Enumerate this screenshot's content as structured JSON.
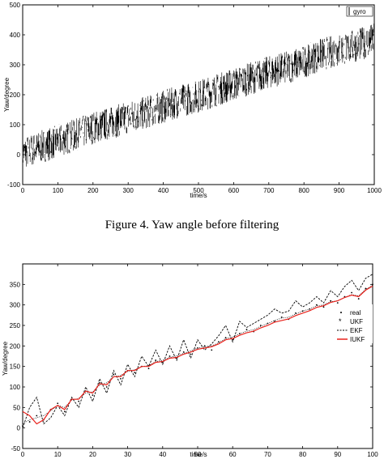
{
  "caption": "Figure 4. Yaw angle before filtering",
  "chart_data": [
    {
      "type": "line",
      "title": "",
      "xlabel": "time/s",
      "ylabel": "Yaw/degree",
      "xlim": [
        0,
        1000
      ],
      "ylim": [
        -100,
        500
      ],
      "xticks": [
        0,
        100,
        200,
        300,
        400,
        500,
        600,
        700,
        800,
        900,
        1000
      ],
      "yticks": [
        -100,
        0,
        100,
        200,
        300,
        400,
        500
      ],
      "ytick_labels": [
        "-100",
        "0",
        "100",
        "200",
        "300",
        "400",
        "500"
      ],
      "grid": false,
      "legend_position": "top-right",
      "series": [
        {
          "name": "gyro",
          "color": "#000000",
          "description": "noisy measured yaw trending from about 0 to about 380",
          "x": [
            0,
            50,
            100,
            150,
            200,
            250,
            300,
            350,
            400,
            450,
            500,
            550,
            600,
            650,
            700,
            750,
            800,
            850,
            900,
            950,
            1000
          ],
          "y": [
            5,
            25,
            45,
            65,
            90,
            105,
            125,
            140,
            160,
            180,
            195,
            215,
            235,
            255,
            275,
            290,
            310,
            335,
            350,
            365,
            385
          ],
          "noise_amplitude": 55
        }
      ]
    },
    {
      "type": "line",
      "title": "",
      "xlabel": "time/s",
      "ylabel": "Yaw/degree",
      "xlim": [
        0,
        100
      ],
      "ylim": [
        -50,
        400
      ],
      "xticks": [
        0,
        10,
        20,
        30,
        40,
        50,
        60,
        70,
        80,
        90,
        100
      ],
      "yticks": [
        -50,
        0,
        50,
        100,
        150,
        200,
        250,
        300,
        350
      ],
      "ytick_labels": [
        "-50",
        "0",
        "50",
        "100",
        "150",
        "200",
        "250",
        "300",
        "350"
      ],
      "grid": false,
      "legend_position": "right",
      "series": [
        {
          "name": "real",
          "style": "dots",
          "color": "#000000",
          "x": [
            0,
            2,
            4,
            6,
            8,
            10,
            12,
            14,
            16,
            18,
            20,
            22,
            24,
            26,
            28,
            30,
            32,
            34,
            36,
            38,
            40,
            42,
            44,
            46,
            48,
            50,
            52,
            54,
            56,
            58,
            60,
            62,
            64,
            66,
            68,
            70,
            72,
            74,
            76,
            78,
            80,
            82,
            84,
            86,
            88,
            90,
            92,
            94,
            96,
            98,
            100
          ],
          "y": [
            5,
            15,
            30,
            20,
            45,
            60,
            40,
            70,
            65,
            90,
            80,
            110,
            100,
            130,
            120,
            140,
            135,
            150,
            145,
            165,
            160,
            175,
            170,
            185,
            180,
            195,
            200,
            190,
            210,
            220,
            215,
            230,
            240,
            235,
            250,
            255,
            260,
            270,
            265,
            280,
            285,
            290,
            300,
            295,
            310,
            305,
            320,
            330,
            315,
            340,
            350
          ]
        },
        {
          "name": "UKF",
          "style": "dotted",
          "color": "#000000",
          "x": [
            0,
            2,
            4,
            6,
            8,
            10,
            12,
            14,
            16,
            18,
            20,
            22,
            24,
            26,
            28,
            30,
            32,
            34,
            36,
            38,
            40,
            42,
            44,
            46,
            48,
            50,
            52,
            54,
            56,
            58,
            60,
            62,
            64,
            66,
            68,
            70,
            72,
            74,
            76,
            78,
            80,
            82,
            84,
            86,
            88,
            90,
            92,
            94,
            96,
            98,
            100
          ],
          "y": [
            10,
            20,
            25,
            30,
            42,
            55,
            50,
            68,
            72,
            85,
            88,
            105,
            110,
            125,
            128,
            138,
            142,
            150,
            152,
            162,
            165,
            172,
            176,
            182,
            188,
            195,
            198,
            200,
            208,
            218,
            222,
            230,
            236,
            240,
            248,
            255,
            262,
            268,
            270,
            278,
            285,
            290,
            298,
            300,
            308,
            310,
            318,
            325,
            322,
            338,
            348
          ]
        },
        {
          "name": "EKF",
          "style": "dashed",
          "color": "#000000",
          "x": [
            0,
            2,
            4,
            6,
            8,
            10,
            12,
            14,
            16,
            18,
            20,
            22,
            24,
            26,
            28,
            30,
            32,
            34,
            36,
            38,
            40,
            42,
            44,
            46,
            48,
            50,
            52,
            54,
            56,
            58,
            60,
            62,
            64,
            66,
            68,
            70,
            72,
            74,
            76,
            78,
            80,
            82,
            84,
            86,
            88,
            90,
            92,
            94,
            96,
            98,
            100
          ],
          "y": [
            0,
            50,
            75,
            10,
            25,
            55,
            30,
            75,
            50,
            100,
            65,
            120,
            85,
            140,
            105,
            155,
            125,
            175,
            150,
            190,
            155,
            200,
            165,
            215,
            170,
            215,
            190,
            205,
            225,
            250,
            210,
            260,
            245,
            255,
            265,
            275,
            290,
            280,
            285,
            310,
            295,
            305,
            320,
            305,
            335,
            320,
            345,
            360,
            335,
            365,
            375
          ]
        },
        {
          "name": "IUKF",
          "style": "solid",
          "color": "#e8201a",
          "x": [
            0,
            2,
            4,
            6,
            8,
            10,
            12,
            14,
            16,
            18,
            20,
            22,
            24,
            26,
            28,
            30,
            32,
            34,
            36,
            38,
            40,
            42,
            44,
            46,
            48,
            50,
            52,
            54,
            56,
            58,
            60,
            62,
            64,
            66,
            68,
            70,
            72,
            74,
            76,
            78,
            80,
            82,
            84,
            86,
            88,
            90,
            92,
            94,
            96,
            98,
            100
          ],
          "y": [
            40,
            30,
            10,
            20,
            45,
            55,
            45,
            70,
            70,
            90,
            85,
            108,
            105,
            125,
            125,
            140,
            140,
            150,
            150,
            160,
            162,
            170,
            172,
            180,
            185,
            192,
            195,
            198,
            205,
            215,
            218,
            226,
            232,
            236,
            244,
            250,
            258,
            262,
            266,
            274,
            280,
            286,
            294,
            298,
            306,
            310,
            318,
            324,
            320,
            336,
            346
          ]
        }
      ]
    }
  ]
}
